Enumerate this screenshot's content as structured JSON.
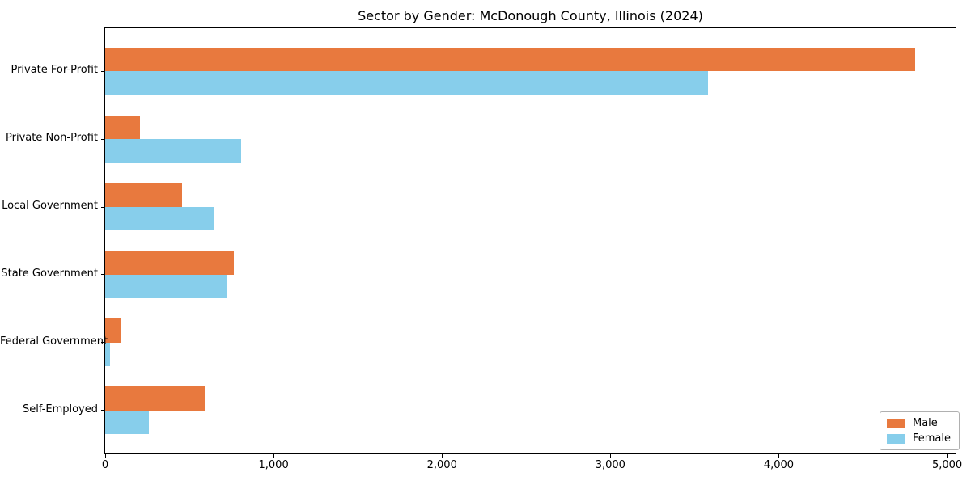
{
  "chart_data": {
    "type": "bar",
    "orientation": "horizontal",
    "title": "Sector by Gender: McDonough County, Illinois (2024)",
    "xlabel": "",
    "ylabel": "",
    "categories": [
      "Private For-Profit",
      "Private Non-Profit",
      "Local Government",
      "State Government",
      "Federal Government",
      "Self-Employed"
    ],
    "series": [
      {
        "name": "Male",
        "color": "#e8793e",
        "values": [
          4810,
          205,
          455,
          765,
          95,
          590
        ]
      },
      {
        "name": "Female",
        "color": "#87ceeb",
        "values": [
          3580,
          805,
          645,
          720,
          30,
          260
        ]
      }
    ],
    "xlim": [
      0,
      5050
    ],
    "xticks": [
      0,
      1000,
      2000,
      3000,
      4000,
      5000
    ],
    "xtick_labels": [
      "0",
      "1,000",
      "2,000",
      "3,000",
      "4,000",
      "5,000"
    ],
    "ylim_units": [
      -0.635,
      5.635
    ],
    "bar_height_units": 0.35,
    "grid": false,
    "legend_position": "lower right",
    "legend_items": [
      {
        "label": "Male",
        "color": "#e8793e"
      },
      {
        "label": "Female",
        "color": "#87ceeb"
      }
    ]
  },
  "colors": {
    "male": "#e8793e",
    "female": "#87ceeb",
    "axis": "#000000",
    "text": "#000000",
    "legend_border": "#b0b0b0",
    "background": "#ffffff"
  }
}
